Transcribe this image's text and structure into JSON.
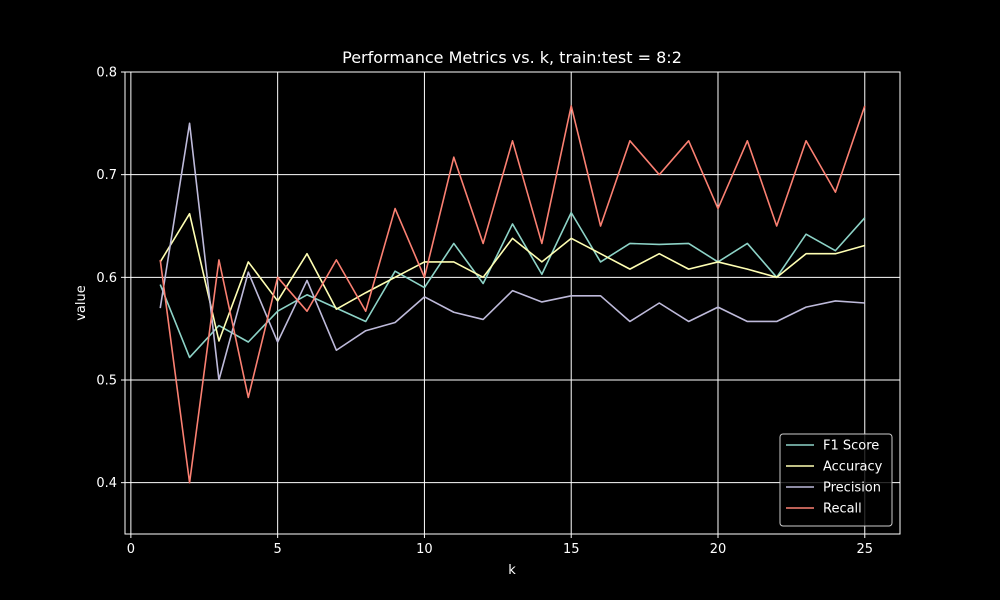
{
  "chart_data": {
    "type": "line",
    "title": "Performance Metrics vs. k, train:test = 8:2",
    "xlabel": "k",
    "ylabel": "value",
    "xlim": [
      -0.2,
      26.2
    ],
    "ylim": [
      0.35,
      0.8
    ],
    "xticks": [
      0,
      5,
      10,
      15,
      20,
      25
    ],
    "yticks": [
      0.4,
      0.5,
      0.6,
      0.7,
      0.8
    ],
    "xtick_labels": [
      "0",
      "5",
      "10",
      "15",
      "20",
      "25"
    ],
    "ytick_labels": [
      "0.4",
      "0.5",
      "0.6",
      "0.7",
      "0.8"
    ],
    "grid": true,
    "legend_position": "bottom-right",
    "x": [
      1,
      2,
      3,
      4,
      5,
      6,
      7,
      8,
      9,
      10,
      11,
      12,
      13,
      14,
      15,
      16,
      17,
      18,
      19,
      20,
      21,
      22,
      23,
      24,
      25
    ],
    "series": [
      {
        "name": "F1 Score",
        "color": "#8dd3c7",
        "values": [
          0.593,
          0.522,
          0.553,
          0.537,
          0.567,
          0.583,
          0.57,
          0.557,
          0.606,
          0.59,
          0.633,
          0.594,
          0.652,
          0.603,
          0.663,
          0.615,
          0.633,
          0.632,
          0.633,
          0.615,
          0.633,
          0.6,
          0.642,
          0.626,
          0.658
        ]
      },
      {
        "name": "Accuracy",
        "color": "#ffffb3",
        "values": [
          0.615,
          0.662,
          0.538,
          0.615,
          0.577,
          0.623,
          0.569,
          0.585,
          0.6,
          0.615,
          0.615,
          0.6,
          0.638,
          0.615,
          0.638,
          0.623,
          0.608,
          0.623,
          0.608,
          0.615,
          0.608,
          0.6,
          0.623,
          0.623,
          0.631
        ]
      },
      {
        "name": "Precision",
        "color": "#bebada",
        "values": [
          0.57,
          0.75,
          0.5,
          0.605,
          0.537,
          0.597,
          0.529,
          0.548,
          0.556,
          0.581,
          0.566,
          0.559,
          0.587,
          0.576,
          0.582,
          0.582,
          0.557,
          0.575,
          0.557,
          0.571,
          0.557,
          0.557,
          0.571,
          0.577,
          0.575
        ]
      },
      {
        "name": "Recall",
        "color": "#fb8072",
        "values": [
          0.617,
          0.4,
          0.617,
          0.483,
          0.6,
          0.567,
          0.617,
          0.567,
          0.667,
          0.6,
          0.717,
          0.633,
          0.733,
          0.633,
          0.767,
          0.65,
          0.733,
          0.7,
          0.733,
          0.667,
          0.733,
          0.65,
          0.733,
          0.683,
          0.767
        ]
      }
    ]
  }
}
